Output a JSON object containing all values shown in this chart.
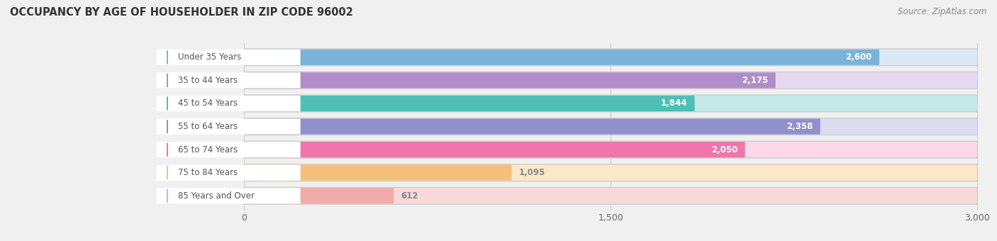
{
  "title": "OCCUPANCY BY AGE OF HOUSEHOLDER IN ZIP CODE 96002",
  "source": "Source: ZipAtlas.com",
  "categories": [
    "Under 35 Years",
    "35 to 44 Years",
    "45 to 54 Years",
    "55 to 64 Years",
    "65 to 74 Years",
    "75 to 84 Years",
    "85 Years and Over"
  ],
  "values": [
    2600,
    2175,
    1844,
    2358,
    2050,
    1095,
    612
  ],
  "bar_colors": [
    "#7ab3d9",
    "#b08dc8",
    "#4dbfb5",
    "#9090cc",
    "#f075aa",
    "#f5c078",
    "#f0aaaa"
  ],
  "bar_bg_colors": [
    "#dce8f5",
    "#e5d8f0",
    "#c5e8e8",
    "#dcdcf0",
    "#fcd8e8",
    "#fce8c8",
    "#f8d8d8"
  ],
  "xlim": [
    0,
    3000
  ],
  "xticks": [
    0,
    1500,
    3000
  ],
  "background_color": "#f0f0f0",
  "bar_bg_outer": "#e0e0e8",
  "value_label_color": "#ffffff",
  "small_value_label_color": "#888888",
  "small_value_threshold": 1500,
  "label_pill_color": "#ffffff",
  "label_text_color": "#555555"
}
